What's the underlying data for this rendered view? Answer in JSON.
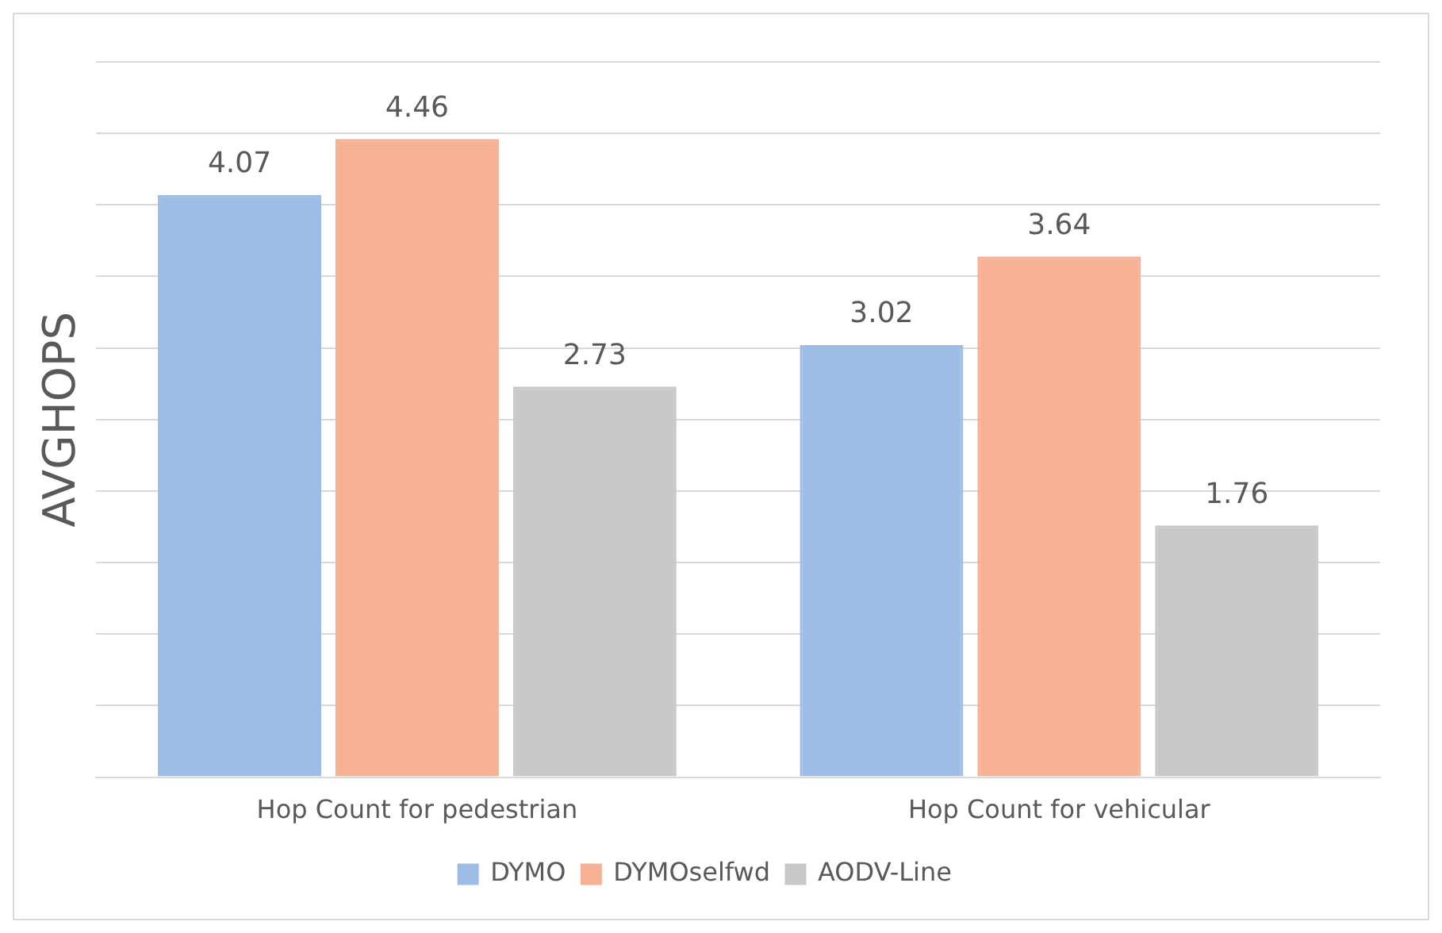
{
  "chart_data": {
    "type": "bar",
    "ylabel": "AVGHOPS",
    "categories": [
      "Hop Count for pedestrian",
      "Hop Count for vehicular"
    ],
    "series": [
      {
        "name": "DYMO",
        "color": "#9dbde6",
        "values": [
          4.07,
          3.02
        ]
      },
      {
        "name": "DYMOselfwd",
        "color": "#f6b092",
        "values": [
          4.46,
          3.64
        ]
      },
      {
        "name": "AODV-Line",
        "color": "#c8c8c8",
        "values": [
          2.73,
          1.76
        ]
      }
    ],
    "grid": "y",
    "tick_labels": "x",
    "data_labels": true,
    "legend": "bottom"
  }
}
